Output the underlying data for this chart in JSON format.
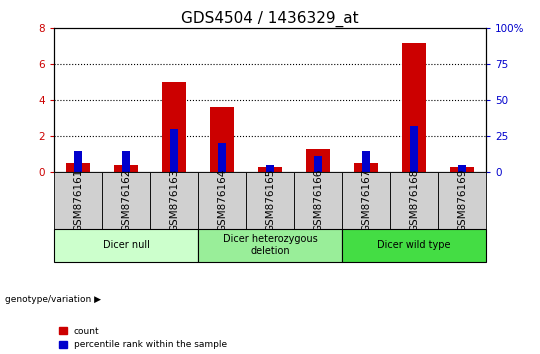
{
  "title": "GDS4504 / 1436329_at",
  "samples": [
    "GSM876161",
    "GSM876162",
    "GSM876163",
    "GSM876164",
    "GSM876165",
    "GSM876166",
    "GSM876167",
    "GSM876168",
    "GSM876169"
  ],
  "count_values": [
    0.5,
    0.4,
    5.0,
    3.6,
    0.3,
    1.3,
    0.5,
    7.2,
    0.3
  ],
  "percentile_values": [
    15,
    15,
    30,
    20,
    5,
    11,
    15,
    32,
    5
  ],
  "count_color": "#cc0000",
  "percentile_color": "#0000cc",
  "left_ylim": [
    0,
    8
  ],
  "right_ylim": [
    0,
    100
  ],
  "left_yticks": [
    0,
    2,
    4,
    6,
    8
  ],
  "right_yticks": [
    0,
    25,
    50,
    75,
    100
  ],
  "right_yticklabels": [
    "0",
    "25",
    "50",
    "75",
    "100%"
  ],
  "groups": [
    {
      "label": "Dicer null",
      "samples": [
        0,
        1,
        2
      ],
      "color": "#ccffcc"
    },
    {
      "label": "Dicer heterozygous\ndeletion",
      "samples": [
        3,
        4,
        5
      ],
      "color": "#99ee99"
    },
    {
      "label": "Dicer wild type",
      "samples": [
        6,
        7,
        8
      ],
      "color": "#44dd44"
    }
  ],
  "genotype_label": "genotype/variation",
  "legend_items": [
    {
      "label": "count",
      "color": "#cc0000"
    },
    {
      "label": "percentile rank within the sample",
      "color": "#0000cc"
    }
  ],
  "sample_box_color": "#d0d0d0",
  "plot_bg": "#ffffff",
  "title_fontsize": 11,
  "tick_fontsize": 7.5,
  "label_fontsize": 8
}
